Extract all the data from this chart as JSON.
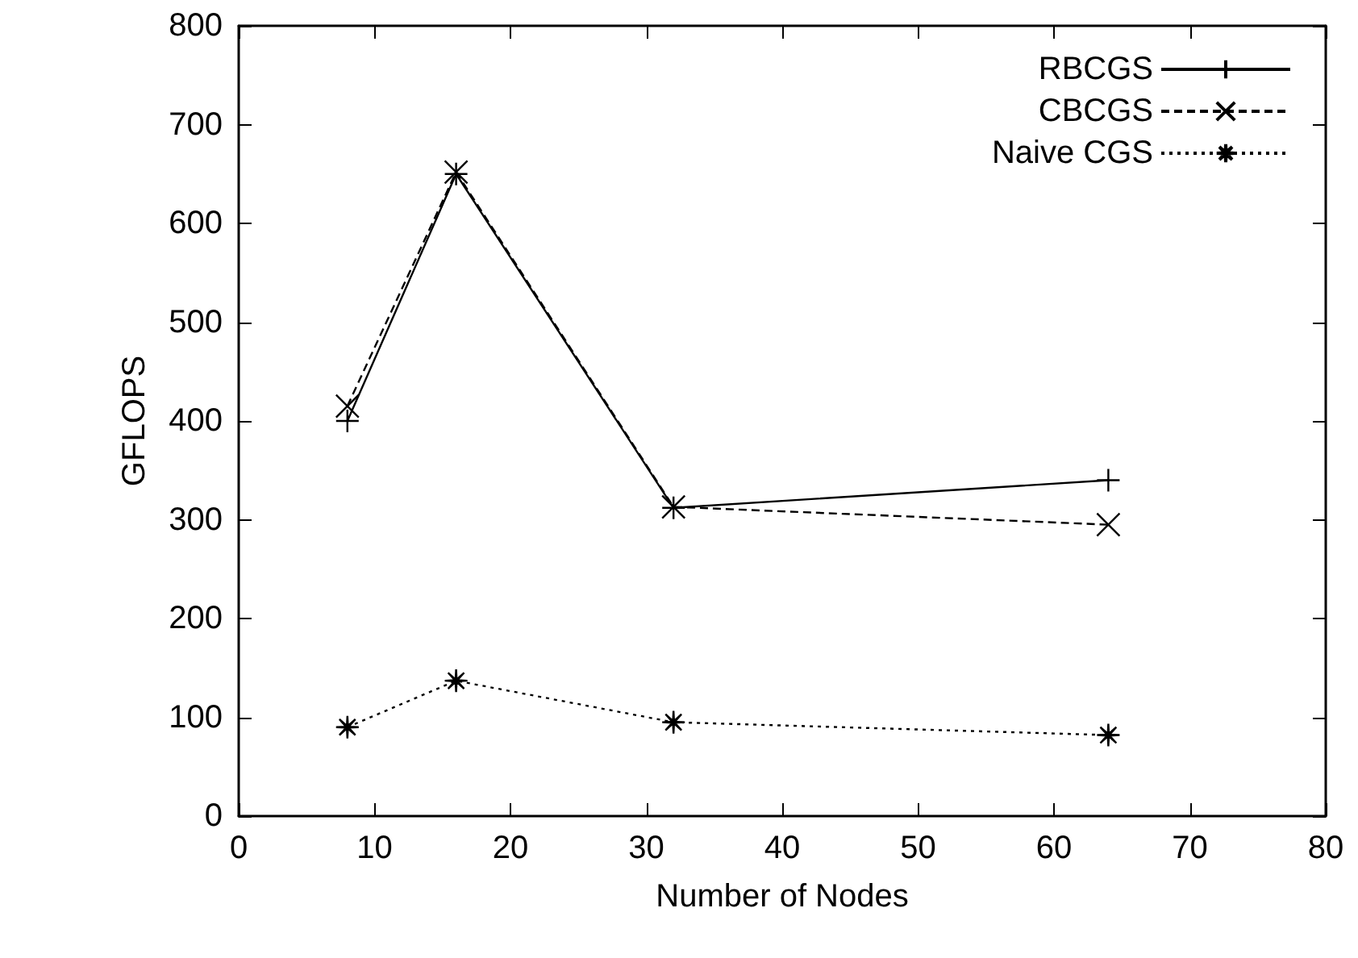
{
  "chart_data": {
    "type": "line",
    "xlabel": "Number of Nodes",
    "ylabel": "GFLOPS",
    "x": [
      8,
      16,
      32,
      64
    ],
    "series": [
      {
        "name": "RBCGS",
        "color": "#000000",
        "values": [
          400,
          650,
          312,
          340
        ],
        "marker": "plus",
        "line_style": "solid"
      },
      {
        "name": "CBCGS",
        "color": "#000000",
        "values": [
          415,
          652,
          313,
          295
        ],
        "marker": "cross",
        "line_style": "dashed"
      },
      {
        "name": "Naive CGS",
        "color": "#000000",
        "values": [
          90,
          137,
          95,
          82
        ],
        "marker": "star",
        "line_style": "dotted"
      }
    ],
    "xlim": [
      0,
      80
    ],
    "xticks": [
      0,
      10,
      20,
      30,
      40,
      50,
      60,
      70,
      80
    ],
    "ylim": [
      0,
      800
    ],
    "yticks": [
      0,
      100,
      200,
      300,
      400,
      500,
      600,
      700,
      800
    ],
    "grid": false,
    "legend": "top right"
  }
}
